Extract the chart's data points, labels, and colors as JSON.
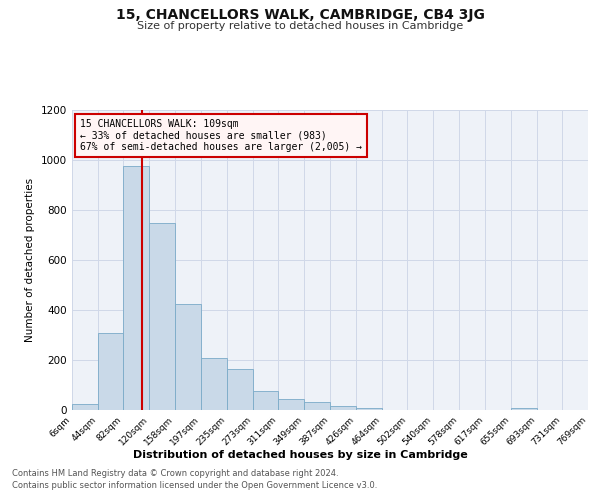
{
  "title": "15, CHANCELLORS WALK, CAMBRIDGE, CB4 3JG",
  "subtitle": "Size of property relative to detached houses in Cambridge",
  "xlabel": "Distribution of detached houses by size in Cambridge",
  "ylabel": "Number of detached properties",
  "annotation_line1": "15 CHANCELLORS WALK: 109sqm",
  "annotation_line2": "← 33% of detached houses are smaller (983)",
  "annotation_line3": "67% of semi-detached houses are larger (2,005) →",
  "property_line_x": 109,
  "bar_color": "#c9d9e8",
  "bar_edge_color": "#7aaac8",
  "line_color": "#cc0000",
  "grid_color": "#d0d8e8",
  "background_color": "#eef2f8",
  "annotation_box_facecolor": "#fff5f5",
  "annotation_border_color": "#cc0000",
  "footnote1": "Contains HM Land Registry data © Crown copyright and database right 2024.",
  "footnote2": "Contains public sector information licensed under the Open Government Licence v3.0.",
  "bin_edges": [
    6,
    44,
    82,
    120,
    158,
    197,
    235,
    273,
    311,
    349,
    387,
    426,
    464,
    502,
    540,
    578,
    617,
    655,
    693,
    731,
    769
  ],
  "bin_labels": [
    "6sqm",
    "44sqm",
    "82sqm",
    "120sqm",
    "158sqm",
    "197sqm",
    "235sqm",
    "273sqm",
    "311sqm",
    "349sqm",
    "387sqm",
    "426sqm",
    "464sqm",
    "502sqm",
    "540sqm",
    "578sqm",
    "617sqm",
    "655sqm",
    "693sqm",
    "731sqm",
    "769sqm"
  ],
  "bar_heights": [
    25,
    310,
    975,
    750,
    425,
    210,
    165,
    75,
    45,
    32,
    18,
    10,
    0,
    0,
    0,
    0,
    0,
    10,
    0,
    0
  ],
  "ylim": [
    0,
    1200
  ],
  "yticks": [
    0,
    200,
    400,
    600,
    800,
    1000,
    1200
  ]
}
